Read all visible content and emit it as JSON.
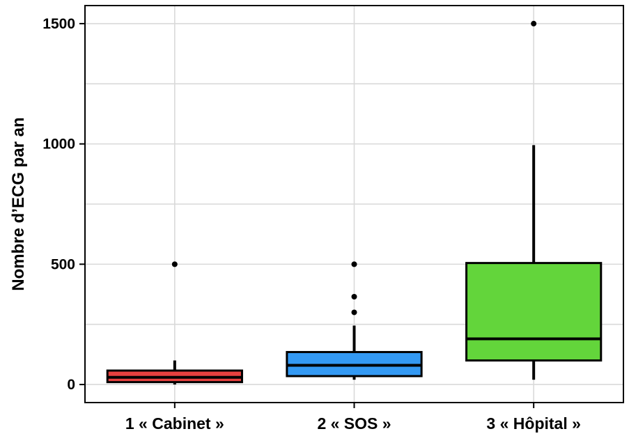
{
  "chart_data": {
    "type": "box",
    "title": "",
    "xlabel": "",
    "ylabel": "Nombre d’ECG par an",
    "ylim": [
      -75,
      1575
    ],
    "yticks": [
      0,
      500,
      1000,
      1500
    ],
    "grid": true,
    "categories": [
      "1 « Cabinet »",
      "2 « SOS »",
      "3 « Hôpital »"
    ],
    "boxes": [
      {
        "category": "1 « Cabinet »",
        "color": "#e8413f",
        "whisker_low": 0,
        "q1": 10,
        "median": 30,
        "q3": 58,
        "whisker_high": 100,
        "outliers": [
          500
        ]
      },
      {
        "category": "2 « SOS »",
        "color": "#3399f3",
        "whisker_low": 20,
        "q1": 35,
        "median": 80,
        "q3": 135,
        "whisker_high": 245,
        "outliers": [
          300,
          365,
          500
        ]
      },
      {
        "category": "3 « Hôpital »",
        "color": "#63d53b",
        "whisker_low": 20,
        "q1": 100,
        "median": 190,
        "q3": 505,
        "whisker_high": 995,
        "outliers": [
          1500
        ]
      }
    ]
  }
}
